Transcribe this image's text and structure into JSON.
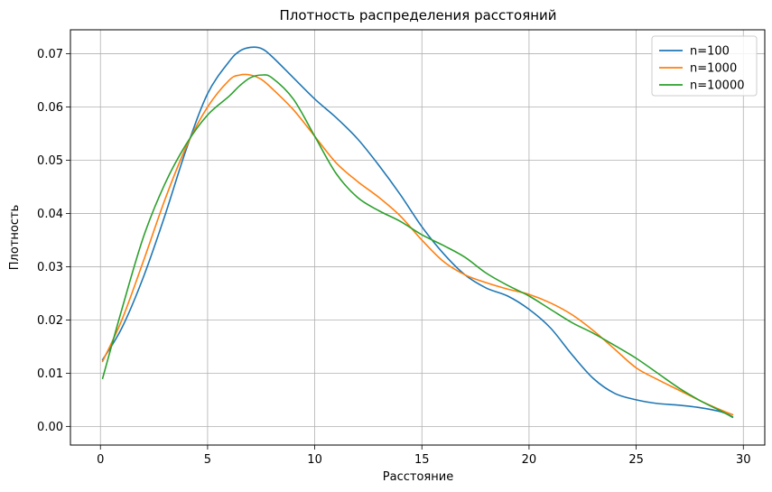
{
  "chart_data": {
    "type": "line",
    "title": "Плотность распределения расстояний",
    "xlabel": "Расстояние",
    "ylabel": "Плотность",
    "xlim": [
      -1.4,
      31.0
    ],
    "ylim": [
      -0.0035,
      0.0745
    ],
    "xticks": [
      0,
      5,
      10,
      15,
      20,
      25,
      30
    ],
    "xtick_labels": [
      "0",
      "5",
      "10",
      "15",
      "20",
      "25",
      "30"
    ],
    "yticks": [
      0.0,
      0.01,
      0.02,
      0.03,
      0.04,
      0.05,
      0.06,
      0.07
    ],
    "ytick_labels": [
      "0.00",
      "0.01",
      "0.02",
      "0.03",
      "0.04",
      "0.05",
      "0.06",
      "0.07"
    ],
    "grid": true,
    "legend_position": "top-right",
    "series": [
      {
        "name": "n=100",
        "color": "#1f77b4",
        "x": [
          0.1,
          1,
          2,
          3,
          4,
          5,
          6,
          6.5,
          7,
          7.5,
          8,
          9,
          10,
          11,
          12,
          13,
          14,
          15,
          16,
          17,
          18,
          19,
          20,
          21,
          22,
          23,
          24,
          25,
          26,
          27,
          28,
          29,
          29.5
        ],
        "y": [
          0.0125,
          0.0185,
          0.028,
          0.0395,
          0.052,
          0.0625,
          0.0685,
          0.0705,
          0.0712,
          0.071,
          0.0695,
          0.0655,
          0.0615,
          0.058,
          0.054,
          0.049,
          0.0435,
          0.0375,
          0.0325,
          0.0285,
          0.026,
          0.0245,
          0.022,
          0.0185,
          0.0135,
          0.009,
          0.0062,
          0.005,
          0.0043,
          0.004,
          0.0035,
          0.0027,
          0.0018
        ]
      },
      {
        "name": "n=1000",
        "color": "#ff7f0e",
        "x": [
          0.1,
          1,
          2,
          3,
          4,
          5,
          6,
          6.5,
          7,
          7.5,
          8,
          9,
          10,
          11,
          12,
          13,
          14,
          15,
          16,
          17,
          18,
          19,
          20,
          21,
          22,
          23,
          24,
          25,
          26,
          27,
          28,
          29,
          29.5
        ],
        "y": [
          0.0122,
          0.02,
          0.031,
          0.0425,
          0.0525,
          0.06,
          0.065,
          0.066,
          0.066,
          0.0652,
          0.0635,
          0.0595,
          0.0545,
          0.0495,
          0.046,
          0.043,
          0.0395,
          0.035,
          0.031,
          0.0285,
          0.027,
          0.0258,
          0.0248,
          0.0232,
          0.021,
          0.018,
          0.0145,
          0.011,
          0.0088,
          0.0068,
          0.0048,
          0.003,
          0.0022
        ]
      },
      {
        "name": "n=10000",
        "color": "#2ca02c",
        "x": [
          0.1,
          1,
          2,
          3,
          4,
          5,
          6,
          6.5,
          7,
          7.5,
          8,
          9,
          10,
          11,
          12,
          13,
          14,
          15,
          16,
          17,
          18,
          19,
          20,
          21,
          22,
          23,
          24,
          25,
          26,
          27,
          28,
          29,
          29.5
        ],
        "y": [
          0.009,
          0.022,
          0.0355,
          0.0455,
          0.053,
          0.0585,
          0.062,
          0.064,
          0.0655,
          0.066,
          0.0655,
          0.0615,
          0.0545,
          0.0475,
          0.043,
          0.0405,
          0.0385,
          0.036,
          0.034,
          0.0318,
          0.0288,
          0.0265,
          0.0245,
          0.022,
          0.0195,
          0.0175,
          0.0152,
          0.0128,
          0.01,
          0.0072,
          0.0048,
          0.0028,
          0.0017
        ]
      }
    ]
  }
}
